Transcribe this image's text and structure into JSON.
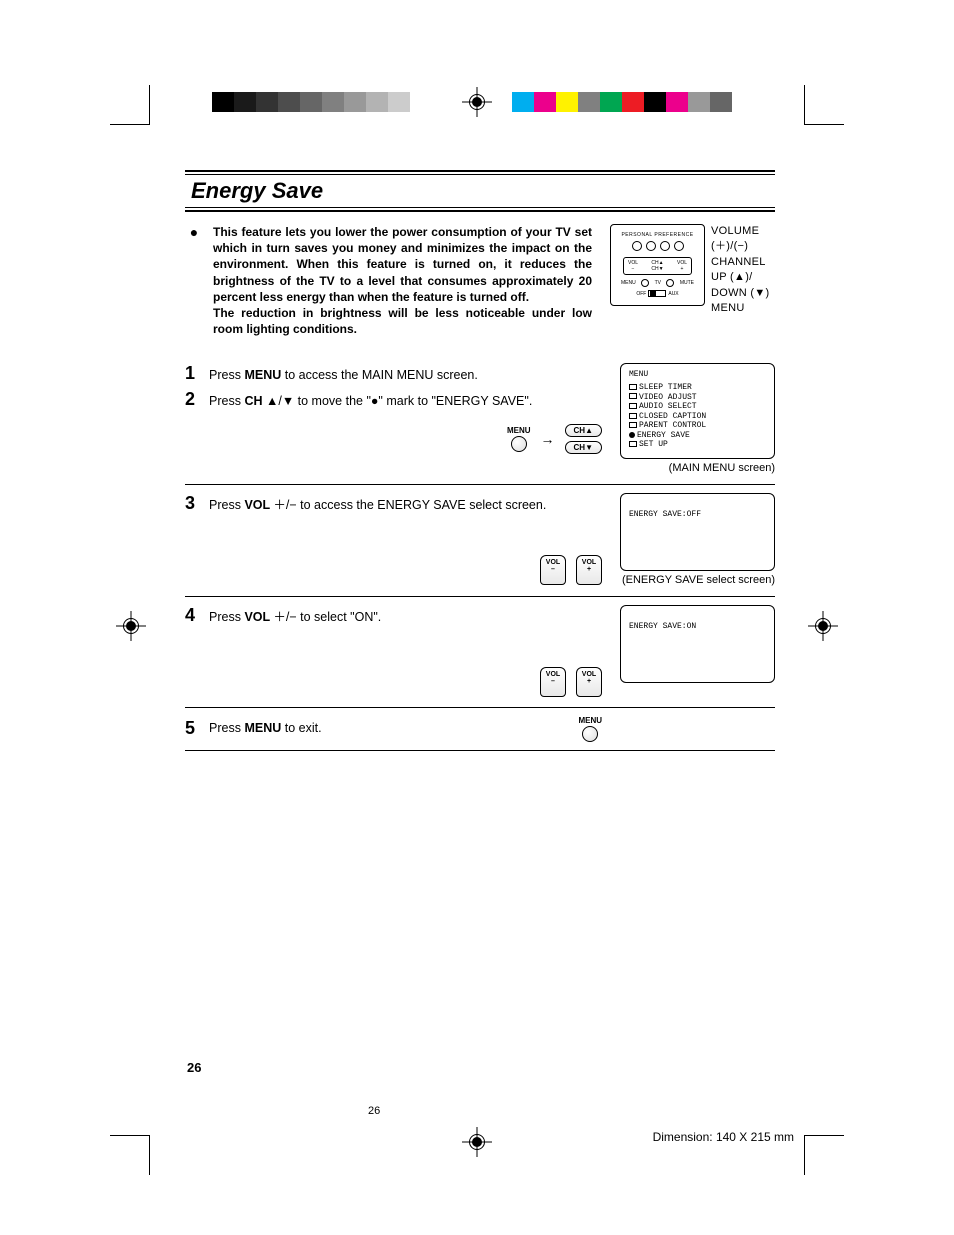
{
  "title": "Energy Save",
  "intro": "This feature lets you lower the power consumption of your TV set which in turn saves you money and minimizes the impact on the environment. When this feature is turned on, it reduces the brightness of the TV to a level that consumes approximately 20 percent less energy than when the feature is turned off.\nThe reduction in brightness will be less noticeable under low room lighting conditions.",
  "remote_labels": {
    "volume": "VOLUME",
    "vol_signs": "(＋)/(−)",
    "channel": "CHANNEL",
    "up": "UP (▲)/",
    "down": "DOWN (▼)",
    "menu": "MENU"
  },
  "remote_diagram": {
    "top": "PERSONAL PREFERENCE",
    "vol": "VOL",
    "ch_up": "CH▲",
    "ch_down": "CH▼",
    "menu_l": "MENU",
    "mute_r": "MUTE",
    "off": "OFF",
    "ant": "ANT",
    "aux": "AUX"
  },
  "steps": {
    "s1_num": "1",
    "s1_a": "Press ",
    "s1_b": "MENU",
    "s1_c": " to access the MAIN MENU screen.",
    "s2_num": "2",
    "s2_a": "Press ",
    "s2_b": "CH ",
    "s2_c": "▲/▼ to move the \"●\" mark to \"ENERGY SAVE\".",
    "s3_num": "3",
    "s3_a": "Press ",
    "s3_b": "VOL ",
    "s3_c": "＋/− to access the ENERGY SAVE select screen.",
    "s4_num": "4",
    "s4_a": "Press ",
    "s4_b": "VOL ",
    "s4_c": "＋/− to select \"ON\".",
    "s5_num": "5",
    "s5_a": "Press ",
    "s5_b": "MENU",
    "s5_c": " to exit."
  },
  "buttons": {
    "menu": "MENU",
    "ch_up": "CH▲",
    "ch_down": "CH▼",
    "vol": "VOL",
    "plus": "+",
    "minus": "–",
    "arrow": "→"
  },
  "screens": {
    "main_menu_title": "MENU",
    "main_menu_items": [
      "SLEEP TIMER",
      "VIDEO ADJUST",
      "AUDIO SELECT",
      "CLOSED CAPTION",
      "PARENT CONTROL",
      "ENERGY SAVE",
      "SET UP"
    ],
    "main_menu_selected_index": 5,
    "main_caption": "(MAIN MENU screen)",
    "es_off": "ENERGY SAVE:OFF",
    "es_caption": "(ENERGY SAVE select screen)",
    "es_on": "ENERGY SAVE:ON"
  },
  "colorbars": {
    "gray": [
      "#000000",
      "#1a1a1a",
      "#333333",
      "#4d4d4d",
      "#666666",
      "#808080",
      "#999999",
      "#b3b3b3",
      "#cccccc",
      "#ffffff"
    ],
    "color": [
      "#00aeef",
      "#ec008c",
      "#fff200",
      "#808080",
      "#00a651",
      "#ed1c24",
      "#000000",
      "#ec008c",
      "#999999",
      "#666666"
    ]
  },
  "page_number_large": "26",
  "page_number_small": "26",
  "dimension_text": "Dimension: 140  X 215 mm"
}
